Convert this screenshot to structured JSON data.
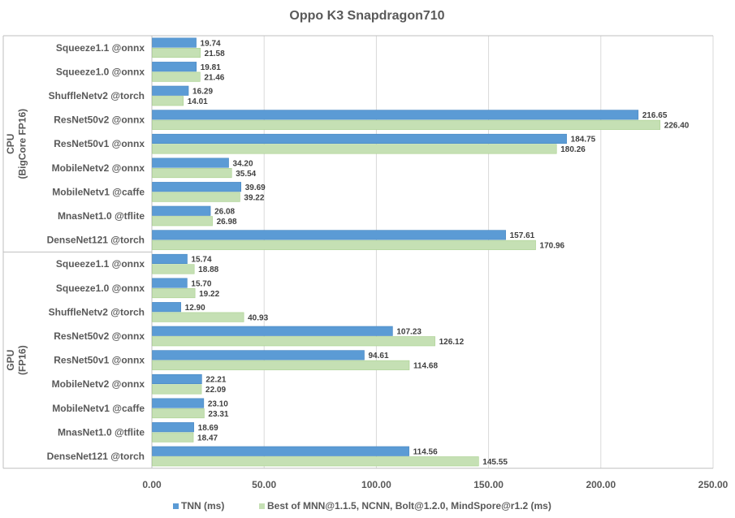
{
  "chart_data": {
    "type": "bar",
    "orientation": "horizontal",
    "title": "Oppo K3 Snapdragon710",
    "xlim": [
      0,
      250
    ],
    "xticks": [
      "0.00",
      "50.00",
      "100.00",
      "150.00",
      "200.00",
      "250.00"
    ],
    "grid": true,
    "legend_position": "bottom",
    "groups": [
      {
        "label_line1": "CPU",
        "label_line2": "(BigCore FP16)",
        "categories": [
          "Squeeze1.1 @onnx",
          "Squeeze1.0 @onnx",
          "ShuffleNetv2 @torch",
          "ResNet50v2 @onnx",
          "ResNet50v1 @onnx",
          "MobileNetv2 @onnx",
          "MobileNetv1 @caffe",
          "MnasNet1.0 @tflite",
          "DenseNet121 @torch"
        ],
        "series": [
          {
            "values": [
              19.74,
              19.81,
              16.29,
              216.65,
              184.75,
              34.2,
              39.69,
              26.08,
              157.61
            ],
            "labels": [
              "19.74",
              "19.81",
              "16.29",
              "216.65",
              "184.75",
              "34.20",
              "39.69",
              "26.08",
              "157.61"
            ]
          },
          {
            "values": [
              21.58,
              21.46,
              14.01,
              226.4,
              180.26,
              35.54,
              39.22,
              26.98,
              170.96
            ],
            "labels": [
              "21.58",
              "21.46",
              "14.01",
              "226.40",
              "180.26",
              "35.54",
              "39.22",
              "26.98",
              "170.96"
            ]
          }
        ]
      },
      {
        "label_line1": "GPU",
        "label_line2": "(FP16)",
        "categories": [
          "Squeeze1.1 @onnx",
          "Squeeze1.0 @onnx",
          "ShuffleNetv2 @torch",
          "ResNet50v2 @onnx",
          "ResNet50v1 @onnx",
          "MobileNetv2 @onnx",
          "MobileNetv1 @caffe",
          "MnasNet1.0 @tflite",
          "DenseNet121 @torch"
        ],
        "series": [
          {
            "values": [
              15.74,
              15.7,
              12.9,
              107.23,
              94.61,
              22.21,
              23.1,
              18.69,
              114.56
            ],
            "labels": [
              "15.74",
              "15.70",
              "12.90",
              "107.23",
              "94.61",
              "22.21",
              "23.10",
              "18.69",
              "114.56"
            ]
          },
          {
            "values": [
              18.88,
              19.22,
              40.93,
              126.12,
              114.68,
              22.09,
              23.31,
              18.47,
              145.55
            ],
            "labels": [
              "18.88",
              "19.22",
              "40.93",
              "126.12",
              "114.68",
              "22.09",
              "23.31",
              "18.47",
              "145.55"
            ]
          }
        ]
      }
    ],
    "legend": [
      "TNN (ms)",
      "Best of MNN@1.1.5, NCNN, Bolt@1.2.0, MindSpore@r1.2 (ms)"
    ],
    "colors": {
      "series1": "#5b9bd5",
      "series1_stroke": "#4a88c2",
      "series2": "#c5e0b4",
      "series2_stroke": "#a9d08e"
    }
  }
}
